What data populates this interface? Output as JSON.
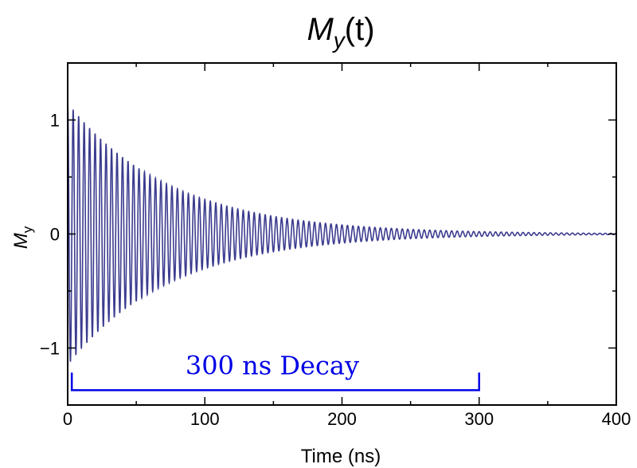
{
  "chart_data": {
    "type": "line",
    "title": {
      "main": "M",
      "subscript": "y",
      "arg": "(t)"
    },
    "xlabel": "Time (ns)",
    "ylabel": {
      "main": "M",
      "subscript": "y"
    },
    "xlim": [
      0,
      400
    ],
    "ylim": [
      -1.5,
      1.5
    ],
    "xticks": [
      0,
      100,
      200,
      300,
      400
    ],
    "xtick_labels": [
      "0",
      "100",
      "200",
      "300",
      "400"
    ],
    "yticks": [
      -1,
      0,
      1
    ],
    "ytick_labels": [
      "−1",
      "0",
      "1"
    ],
    "grid": false,
    "series": [
      {
        "function": "damped cosine",
        "amplitude": 1.15,
        "decay_time_ns": 75,
        "period_ns": 4,
        "t_range": [
          0,
          400
        ],
        "color": "#3b3b8f"
      }
    ],
    "annotation": {
      "text": "300 ns Decay",
      "bracket_start": 3,
      "bracket_end": 300,
      "bracket_y": -1.37,
      "color": "#0000e6"
    }
  }
}
